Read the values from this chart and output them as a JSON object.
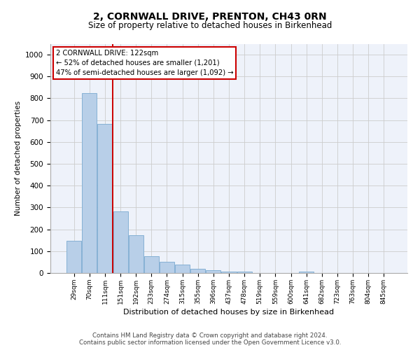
{
  "title": "2, CORNWALL DRIVE, PRENTON, CH43 0RN",
  "subtitle": "Size of property relative to detached houses in Birkenhead",
  "xlabel": "Distribution of detached houses by size in Birkenhead",
  "ylabel": "Number of detached properties",
  "footer_line1": "Contains HM Land Registry data © Crown copyright and database right 2024.",
  "footer_line2": "Contains public sector information licensed under the Open Government Licence v3.0.",
  "bar_color": "#b8cfe8",
  "bar_edge_color": "#7aaad0",
  "vline_color": "#cc0000",
  "annotation_text": "2 CORNWALL DRIVE: 122sqm\n← 52% of detached houses are smaller (1,201)\n47% of semi-detached houses are larger (1,092) →",
  "annotation_box_color": "#ffffff",
  "annotation_box_edge": "#cc0000",
  "categories": [
    "29sqm",
    "70sqm",
    "111sqm",
    "151sqm",
    "192sqm",
    "233sqm",
    "274sqm",
    "315sqm",
    "355sqm",
    "396sqm",
    "437sqm",
    "478sqm",
    "519sqm",
    "559sqm",
    "600sqm",
    "641sqm",
    "682sqm",
    "723sqm",
    "763sqm",
    "804sqm",
    "845sqm"
  ],
  "values": [
    148,
    825,
    683,
    283,
    172,
    78,
    50,
    38,
    20,
    14,
    8,
    5,
    0,
    0,
    0,
    8,
    0,
    0,
    0,
    0,
    0
  ],
  "ylim": [
    0,
    1050
  ],
  "yticks": [
    0,
    100,
    200,
    300,
    400,
    500,
    600,
    700,
    800,
    900,
    1000
  ],
  "grid_color": "#cccccc",
  "bg_color": "#eef2fa"
}
